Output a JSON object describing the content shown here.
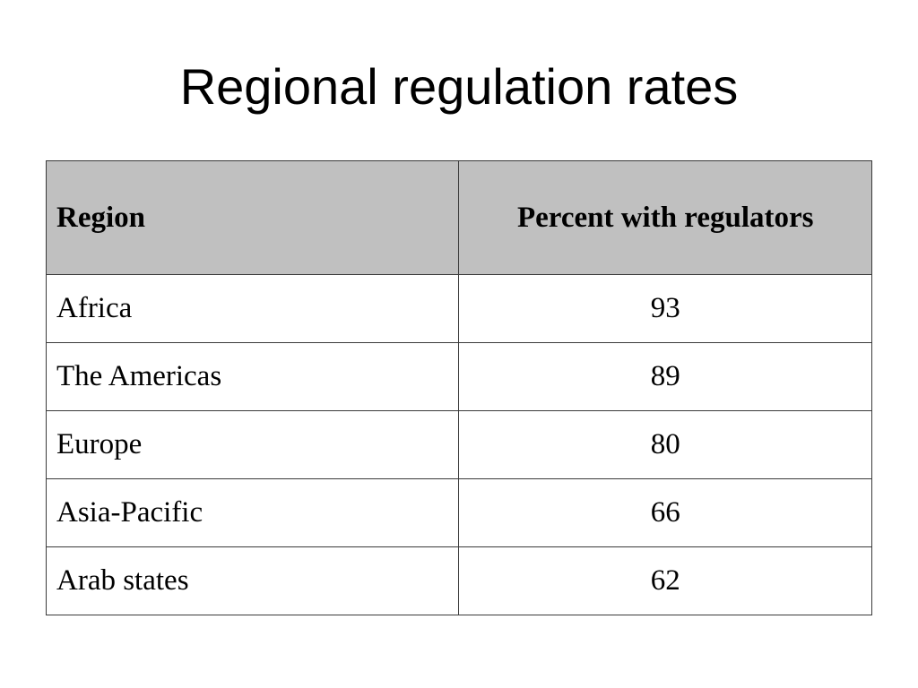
{
  "title": "Regional regulation rates",
  "table": {
    "headers": {
      "region": "Region",
      "percent": "Percent with regulators"
    },
    "rows": [
      {
        "region": "Africa",
        "percent": "93"
      },
      {
        "region": "The Americas",
        "percent": "89"
      },
      {
        "region": "Europe",
        "percent": "80"
      },
      {
        "region": "Asia-Pacific",
        "percent": "66"
      },
      {
        "region": "Arab states",
        "percent": "62"
      }
    ]
  },
  "colors": {
    "header_background": "#c0c0c0",
    "border": "#3a3a3a",
    "text": "#000000",
    "page_background": "#ffffff"
  }
}
